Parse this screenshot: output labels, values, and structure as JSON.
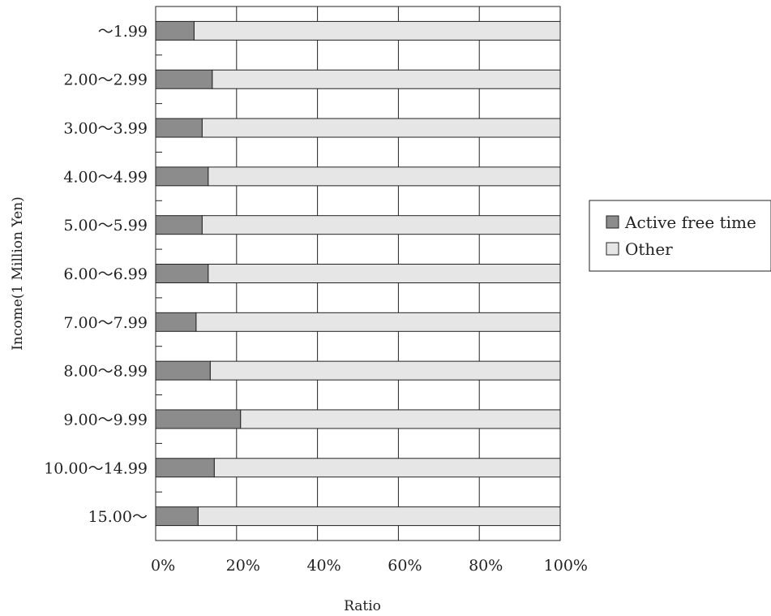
{
  "chart_data": {
    "type": "bar",
    "orientation": "horizontal",
    "stacked": true,
    "normalized": true,
    "categories": [
      "～1.99",
      "2.00～2.99",
      "3.00～3.99",
      "4.00～4.99",
      "5.00～5.99",
      "6.00～6.99",
      "7.00～7.99",
      "8.00～8.99",
      "9.00～9.99",
      "10.00～14.99",
      "15.00～"
    ],
    "series": [
      {
        "name": "Active free time",
        "color": "#8c8c8c",
        "values": [
          9.5,
          14.0,
          11.5,
          13.0,
          11.5,
          13.0,
          10.0,
          13.5,
          21.0,
          14.5,
          10.5
        ]
      },
      {
        "name": "Other",
        "color": "#e6e6e6",
        "values": [
          90.5,
          86.0,
          88.5,
          87.0,
          88.5,
          87.0,
          90.0,
          86.5,
          79.0,
          85.5,
          89.5
        ]
      }
    ],
    "xlabel": "Ratio",
    "ylabel": "Income(1 Million Yen)",
    "xlim": [
      0,
      100
    ],
    "xticks": [
      "0%",
      "20%",
      "40%",
      "60%",
      "80%",
      "100%"
    ],
    "grid": true,
    "legend": "right"
  }
}
